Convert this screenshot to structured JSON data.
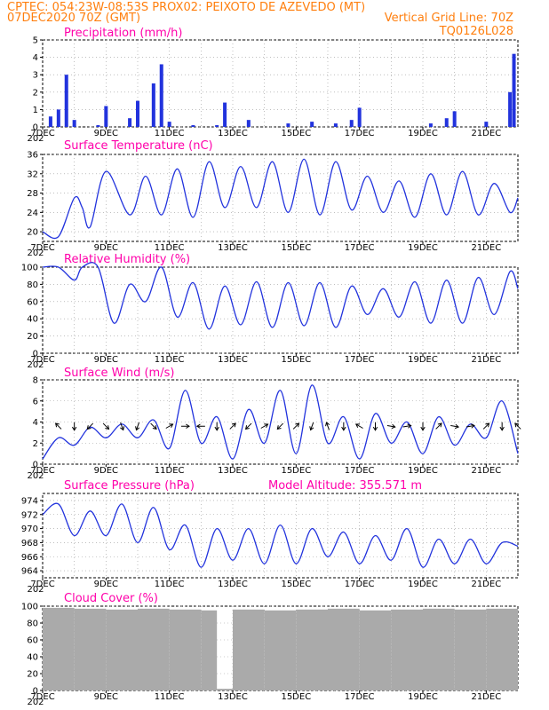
{
  "header": {
    "line1_left": "CPTEC:   054:23W-08:53S   PROX02: PEIXOTO DE AZEVEDO (MT)",
    "line2_left": "07DEC2020 70Z (GMT)",
    "line2_right": "Vertical Grid Line: 70Z",
    "line3_right": "TQ0126L028"
  },
  "colors": {
    "header": "#ff7f0e",
    "title": "#ff00aa",
    "line": "#2233dd",
    "bar": "#2233dd",
    "cloud": "#aaaaaa",
    "wind_arrow": "#000000"
  },
  "x_axis": {
    "start": "2020-12-07T00:00Z",
    "end": "2020-12-22T00:00Z",
    "tick_labels": [
      "7DEC",
      "9DEC",
      "11DEC",
      "13DEC",
      "15DEC",
      "17DEC",
      "19DEC",
      "21DEC"
    ],
    "year_stub": "202"
  },
  "chart_data": [
    {
      "type": "bar",
      "title": "Precipitation (mm/h)",
      "ylim": [
        0,
        5
      ],
      "yticks": [
        "0",
        "1",
        "2",
        "3",
        "4",
        "5"
      ],
      "x": [
        "2020-12-07T06Z",
        "2020-12-07T12Z",
        "2020-12-07T18Z",
        "2020-12-08T00Z",
        "2020-12-08T18Z",
        "2020-12-09T00Z",
        "2020-12-09T18Z",
        "2020-12-10T00Z",
        "2020-12-10T12Z",
        "2020-12-10T18Z",
        "2020-12-11T00Z",
        "2020-12-11T18Z",
        "2020-12-12T12Z",
        "2020-12-12T18Z",
        "2020-12-13T12Z",
        "2020-12-14T18Z",
        "2020-12-15T12Z",
        "2020-12-16T06Z",
        "2020-12-16T18Z",
        "2020-12-17T00Z",
        "2020-12-19T06Z",
        "2020-12-19T18Z",
        "2020-12-20T00Z",
        "2020-12-21T00Z",
        "2020-12-21T18Z",
        "2020-12-21T21Z"
      ],
      "values": [
        0.6,
        1.0,
        3.0,
        0.4,
        0.1,
        1.2,
        0.5,
        1.5,
        2.5,
        3.6,
        0.3,
        0.1,
        0.1,
        1.4,
        0.4,
        0.2,
        0.3,
        0.2,
        0.4,
        1.1,
        0.2,
        0.5,
        0.9,
        0.3,
        2.0,
        4.2
      ]
    },
    {
      "type": "line",
      "title": "Surface Temperature (nC)",
      "ylim": [
        18,
        36
      ],
      "yticks": [
        "20",
        "24",
        "28",
        "32",
        "36"
      ],
      "ytick_values": [
        20,
        24,
        28,
        32,
        36
      ],
      "x": [
        "2020-12-07T00Z",
        "2020-12-07T12Z",
        "2020-12-08T00Z",
        "2020-12-08T06Z",
        "2020-12-08T12Z",
        "2020-12-09T00Z",
        "2020-12-09T18Z",
        "2020-12-10T06Z",
        "2020-12-10T18Z",
        "2020-12-11T06Z",
        "2020-12-11T18Z",
        "2020-12-12T06Z",
        "2020-12-12T18Z",
        "2020-12-13T06Z",
        "2020-12-13T18Z",
        "2020-12-14T06Z",
        "2020-12-14T18Z",
        "2020-12-15T06Z",
        "2020-12-15T18Z",
        "2020-12-16T06Z",
        "2020-12-16T18Z",
        "2020-12-17T06Z",
        "2020-12-17T18Z",
        "2020-12-18T06Z",
        "2020-12-18T18Z",
        "2020-12-19T06Z",
        "2020-12-19T18Z",
        "2020-12-20T06Z",
        "2020-12-20T18Z",
        "2020-12-21T06Z",
        "2020-12-21T18Z",
        "2020-12-22T00Z"
      ],
      "values": [
        20,
        19,
        27,
        25,
        21,
        32.5,
        23.5,
        31.5,
        23.5,
        33,
        23,
        34.5,
        25,
        33.5,
        25,
        34.5,
        24,
        35,
        23.5,
        34.5,
        24.5,
        31.5,
        24,
        30.5,
        23,
        32,
        23.5,
        32.5,
        23.5,
        30,
        24,
        27
      ]
    },
    {
      "type": "line",
      "title": "Relative Humidity (%)",
      "ylim": [
        0,
        100
      ],
      "yticks": [
        "0",
        "20",
        "40",
        "60",
        "80",
        "100"
      ],
      "ytick_values": [
        0,
        20,
        40,
        60,
        80,
        100
      ],
      "x": [
        "2020-12-07T00Z",
        "2020-12-07T12Z",
        "2020-12-08T00Z",
        "2020-12-08T06Z",
        "2020-12-08T18Z",
        "2020-12-09T06Z",
        "2020-12-09T18Z",
        "2020-12-10T06Z",
        "2020-12-10T18Z",
        "2020-12-11T06Z",
        "2020-12-11T18Z",
        "2020-12-12T06Z",
        "2020-12-12T18Z",
        "2020-12-13T06Z",
        "2020-12-13T18Z",
        "2020-12-14T06Z",
        "2020-12-14T18Z",
        "2020-12-15T06Z",
        "2020-12-15T18Z",
        "2020-12-16T06Z",
        "2020-12-16T18Z",
        "2020-12-17T06Z",
        "2020-12-17T18Z",
        "2020-12-18T06Z",
        "2020-12-18T18Z",
        "2020-12-19T06Z",
        "2020-12-19T18Z",
        "2020-12-20T06Z",
        "2020-12-20T18Z",
        "2020-12-21T06Z",
        "2020-12-21T18Z",
        "2020-12-22T00Z"
      ],
      "values": [
        100,
        100,
        85,
        100,
        100,
        35,
        80,
        60,
        100,
        42,
        82,
        28,
        78,
        33,
        83,
        30,
        82,
        32,
        82,
        30,
        78,
        45,
        75,
        42,
        83,
        35,
        85,
        35,
        88,
        45,
        95,
        75
      ]
    },
    {
      "type": "line",
      "title": "Surface Wind (m/s)",
      "ylim": [
        0,
        8
      ],
      "yticks": [
        "0",
        "2",
        "4",
        "6",
        "8"
      ],
      "ytick_values": [
        0,
        2,
        4,
        6,
        8
      ],
      "x": [
        "2020-12-07T00Z",
        "2020-12-07T12Z",
        "2020-12-08T00Z",
        "2020-12-08T12Z",
        "2020-12-09T00Z",
        "2020-12-09T12Z",
        "2020-12-10T00Z",
        "2020-12-10T12Z",
        "2020-12-11T00Z",
        "2020-12-11T12Z",
        "2020-12-12T00Z",
        "2020-12-12T12Z",
        "2020-12-13T00Z",
        "2020-12-13T12Z",
        "2020-12-14T00Z",
        "2020-12-14T12Z",
        "2020-12-15T00Z",
        "2020-12-15T12Z",
        "2020-12-16T00Z",
        "2020-12-16T12Z",
        "2020-12-17T00Z",
        "2020-12-17T12Z",
        "2020-12-18T00Z",
        "2020-12-18T12Z",
        "2020-12-19T00Z",
        "2020-12-19T12Z",
        "2020-12-20T00Z",
        "2020-12-20T12Z",
        "2020-12-21T00Z",
        "2020-12-21T12Z",
        "2020-12-22T00Z"
      ],
      "values": [
        0.5,
        2.5,
        1.8,
        3.5,
        2.5,
        3.8,
        2.5,
        4.2,
        1.5,
        7.0,
        2.0,
        4.5,
        0.5,
        5.2,
        2.0,
        7.0,
        1.0,
        7.5,
        2.0,
        4.5,
        0.5,
        4.8,
        2.0,
        4.0,
        1.0,
        4.5,
        1.8,
        3.8,
        2.5,
        6.0,
        1.0
      ],
      "wind_arrows": [
        {
          "t": "2020-12-07T12Z",
          "dir": 315
        },
        {
          "t": "2020-12-08T00Z",
          "dir": 180
        },
        {
          "t": "2020-12-08T12Z",
          "dir": 225
        },
        {
          "t": "2020-12-09T00Z",
          "dir": 135
        },
        {
          "t": "2020-12-09T12Z",
          "dir": 160
        },
        {
          "t": "2020-12-10T00Z",
          "dir": 200
        },
        {
          "t": "2020-12-10T12Z",
          "dir": 135
        },
        {
          "t": "2020-12-11T00Z",
          "dir": 60
        },
        {
          "t": "2020-12-11T12Z",
          "dir": 90
        },
        {
          "t": "2020-12-12T00Z",
          "dir": 270
        },
        {
          "t": "2020-12-12T12Z",
          "dir": 180
        },
        {
          "t": "2020-12-13T00Z",
          "dir": 45
        },
        {
          "t": "2020-12-13T12Z",
          "dir": 225
        },
        {
          "t": "2020-12-14T00Z",
          "dir": 60
        },
        {
          "t": "2020-12-14T12Z",
          "dir": 225
        },
        {
          "t": "2020-12-15T00Z",
          "dir": 45
        },
        {
          "t": "2020-12-15T12Z",
          "dir": 200
        },
        {
          "t": "2020-12-16T00Z",
          "dir": 340
        },
        {
          "t": "2020-12-16T12Z",
          "dir": 180
        },
        {
          "t": "2020-12-17T00Z",
          "dir": 300
        },
        {
          "t": "2020-12-17T12Z",
          "dir": 180
        },
        {
          "t": "2020-12-18T00Z",
          "dir": 100
        },
        {
          "t": "2020-12-18T12Z",
          "dir": 80
        },
        {
          "t": "2020-12-19T00Z",
          "dir": 180
        },
        {
          "t": "2020-12-19T12Z",
          "dir": 45
        },
        {
          "t": "2020-12-20T00Z",
          "dir": 100
        },
        {
          "t": "2020-12-20T12Z",
          "dir": 80
        },
        {
          "t": "2020-12-21T00Z",
          "dir": 45
        },
        {
          "t": "2020-12-21T12Z",
          "dir": 180
        },
        {
          "t": "2020-12-22T00Z",
          "dir": 315
        }
      ]
    },
    {
      "type": "line",
      "title": "Surface Pressure (hPa)",
      "extra_label": "Model Altitude: 355.571  m",
      "ylim": [
        963,
        975
      ],
      "yticks": [
        "964",
        "966",
        "968",
        "970",
        "972",
        "974"
      ],
      "ytick_values": [
        964,
        966,
        968,
        970,
        972,
        974
      ],
      "x": [
        "2020-12-07T00Z",
        "2020-12-07T12Z",
        "2020-12-08T00Z",
        "2020-12-08T12Z",
        "2020-12-09T00Z",
        "2020-12-09T12Z",
        "2020-12-10T00Z",
        "2020-12-10T12Z",
        "2020-12-11T00Z",
        "2020-12-11T12Z",
        "2020-12-12T00Z",
        "2020-12-12T12Z",
        "2020-12-13T00Z",
        "2020-12-13T12Z",
        "2020-12-14T00Z",
        "2020-12-14T12Z",
        "2020-12-15T00Z",
        "2020-12-15T12Z",
        "2020-12-16T00Z",
        "2020-12-16T12Z",
        "2020-12-17T00Z",
        "2020-12-17T12Z",
        "2020-12-18T00Z",
        "2020-12-18T12Z",
        "2020-12-19T00Z",
        "2020-12-19T12Z",
        "2020-12-20T00Z",
        "2020-12-20T12Z",
        "2020-12-21T00Z",
        "2020-12-21T12Z",
        "2020-12-22T00Z"
      ],
      "values": [
        972,
        973.5,
        969,
        972.5,
        969,
        973.5,
        968,
        973,
        967,
        970.5,
        964.5,
        970,
        965.5,
        970,
        965,
        970.5,
        965,
        970,
        966,
        969.5,
        965,
        969,
        965.5,
        970,
        964.5,
        968.5,
        965,
        968.5,
        965,
        968,
        967.5
      ]
    },
    {
      "type": "bar",
      "title": "Cloud Cover (%)",
      "ylim": [
        0,
        100
      ],
      "yticks": [
        "0",
        "20",
        "40",
        "60",
        "80",
        "100"
      ],
      "ytick_values": [
        0,
        20,
        40,
        60,
        80,
        100
      ],
      "x": [
        "2020-12-07",
        "2020-12-08",
        "2020-12-09",
        "2020-12-10",
        "2020-12-11",
        "2020-12-12",
        "2020-12-12T12Z",
        "2020-12-13",
        "2020-12-14",
        "2020-12-15",
        "2020-12-16",
        "2020-12-17",
        "2020-12-18",
        "2020-12-19",
        "2020-12-20",
        "2020-12-21"
      ],
      "values": [
        98,
        97,
        96,
        97,
        96,
        95,
        2,
        96,
        95,
        96,
        97,
        95,
        96,
        97,
        96,
        97
      ]
    }
  ]
}
